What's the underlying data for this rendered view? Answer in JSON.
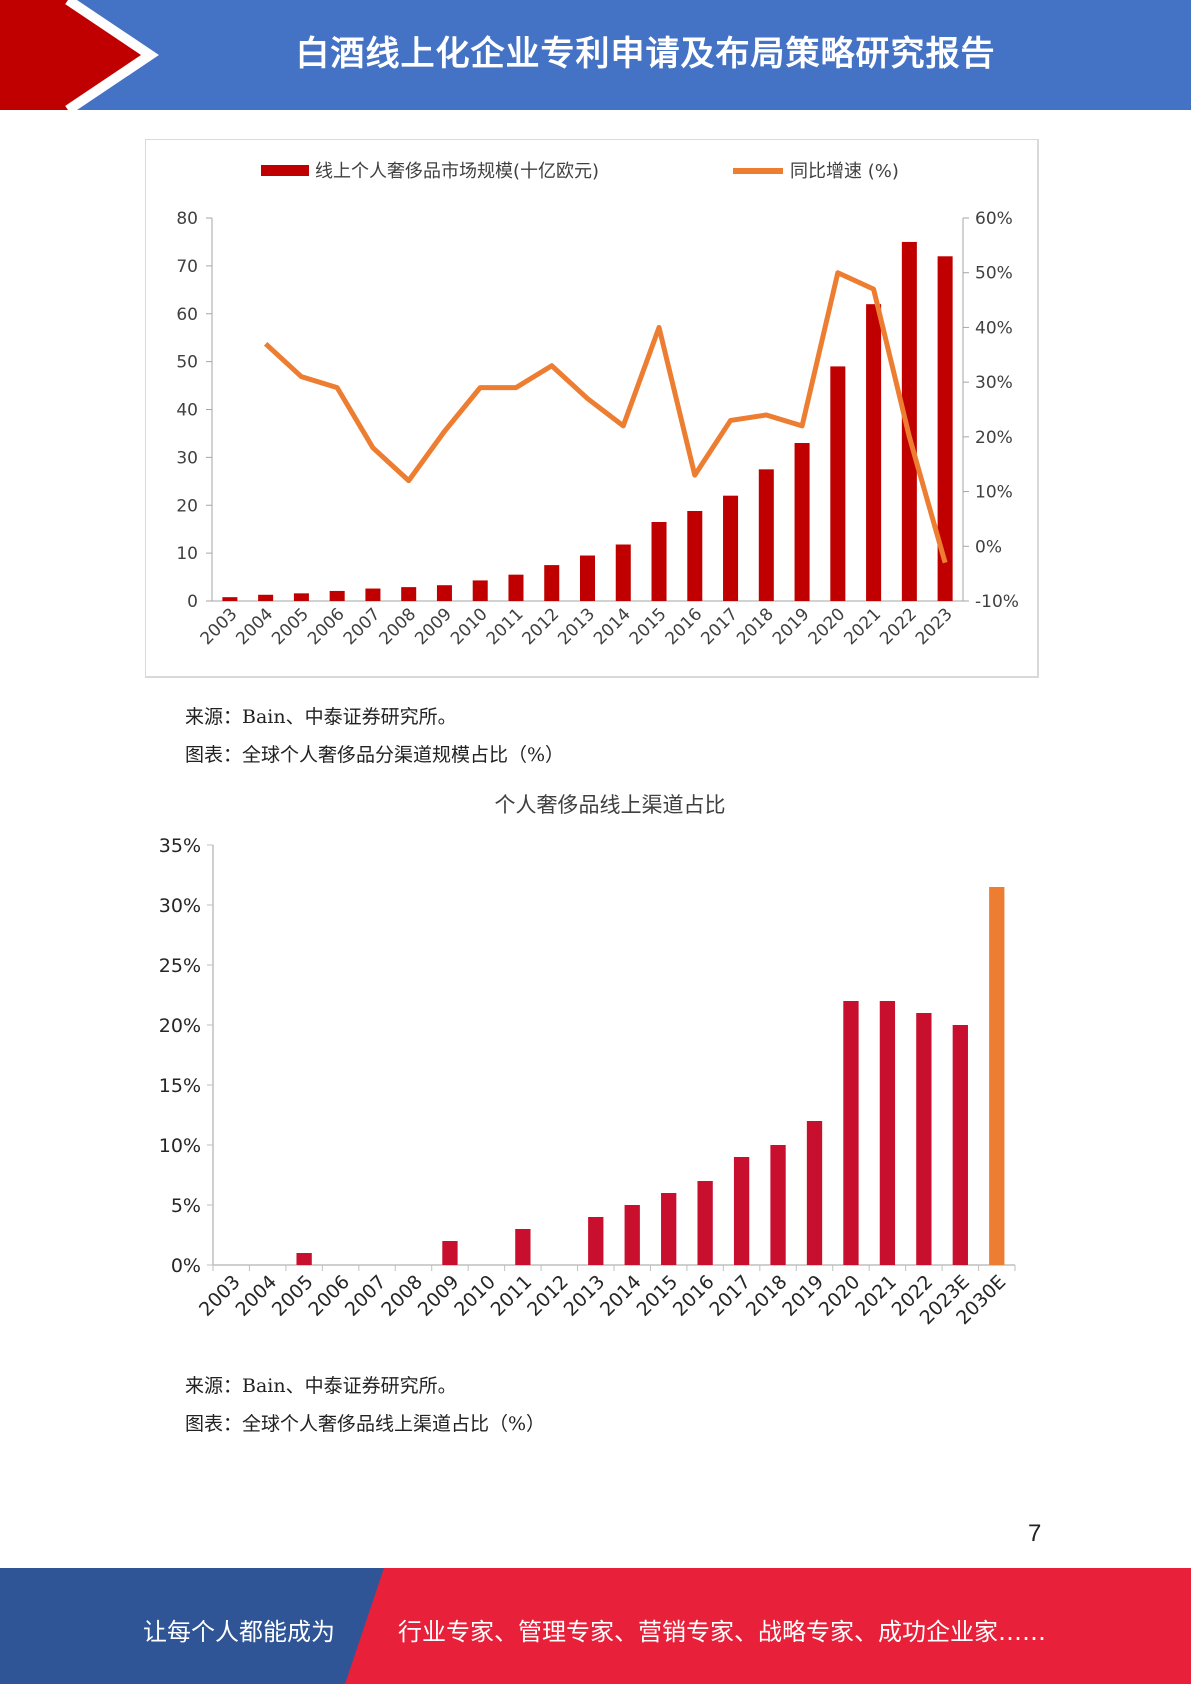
{
  "header": {
    "title": "白酒线上化企业专利申请及布局策略研究报告"
  },
  "chart1": {
    "legend_bar": "线上个人奢侈品市场规模(十亿欧元)",
    "legend_line": "同比增速 (%)",
    "source": "来源：Bain、中泰证券研究所。",
    "caption": "图表：全球个人奢侈品分渠道规模占比（%）"
  },
  "chart2": {
    "title": "个人奢侈品线上渠道占比",
    "source": "来源：Bain、中泰证券研究所。",
    "caption": "图表：全球个人奢侈品线上渠道占比（%）"
  },
  "page_number": "7",
  "footer": {
    "left": "让每个人都能成为",
    "right": "行业专家、管理专家、营销专家、战略专家、成功企业家……"
  },
  "colors": {
    "bar_red": "#c00000",
    "line_orange": "#ed7d31",
    "bar_crimson": "#c8102e",
    "bar_orange": "#ed7d31",
    "header_blue": "#4472c4",
    "footer_red": "#e8203a",
    "footer_blue": "#2f5597"
  },
  "chart_data": [
    {
      "type": "bar",
      "categories": [
        "2003",
        "2004",
        "2005",
        "2006",
        "2007",
        "2008",
        "2009",
        "2010",
        "2011",
        "2012",
        "2013",
        "2014",
        "2015",
        "2016",
        "2017",
        "2018",
        "2019",
        "2020",
        "2021",
        "2022",
        "2023"
      ],
      "series": [
        {
          "name": "线上个人奢侈品市场规模(十亿欧元)",
          "type": "bar",
          "axis": "left",
          "values": [
            0.8,
            1.3,
            1.6,
            2.1,
            2.6,
            2.9,
            3.3,
            4.3,
            5.5,
            7.5,
            9.5,
            11.8,
            16.5,
            18.8,
            22,
            27.5,
            33,
            49,
            62,
            75,
            72
          ]
        },
        {
          "name": "同比增速 (%)",
          "type": "line",
          "axis": "right",
          "values": [
            null,
            37,
            31,
            29,
            18,
            12,
            21,
            29,
            29,
            33,
            27,
            22,
            40,
            13,
            23,
            24,
            22,
            50,
            47,
            20,
            -3
          ]
        }
      ],
      "ylim": [
        0,
        80
      ],
      "y_ticks": [
        "0",
        "10",
        "20",
        "30",
        "40",
        "50",
        "60",
        "70",
        "80"
      ],
      "y2lim": [
        -10,
        60
      ],
      "y2_ticks": [
        "-10%",
        "0%",
        "10%",
        "20%",
        "30%",
        "40%",
        "50%",
        "60%"
      ],
      "legend": "top",
      "grid": false
    },
    {
      "type": "bar",
      "title": "个人奢侈品线上渠道占比",
      "categories": [
        "2003",
        "2004",
        "2005",
        "2006",
        "2007",
        "2008",
        "2009",
        "2010",
        "2011",
        "2012",
        "2013",
        "2014",
        "2015",
        "2016",
        "2017",
        "2018",
        "2019",
        "2020",
        "2021",
        "2022",
        "2023E",
        "2030E"
      ],
      "values": [
        0,
        0,
        1,
        0,
        0,
        0,
        2,
        0,
        3,
        0,
        4,
        5,
        6,
        7,
        9,
        10,
        12,
        22,
        22,
        21,
        20,
        31.5
      ],
      "ylim": [
        0,
        35
      ],
      "y_ticks": [
        "0%",
        "5%",
        "10%",
        "15%",
        "20%",
        "25%",
        "30%",
        "35%"
      ],
      "grid": false
    }
  ]
}
